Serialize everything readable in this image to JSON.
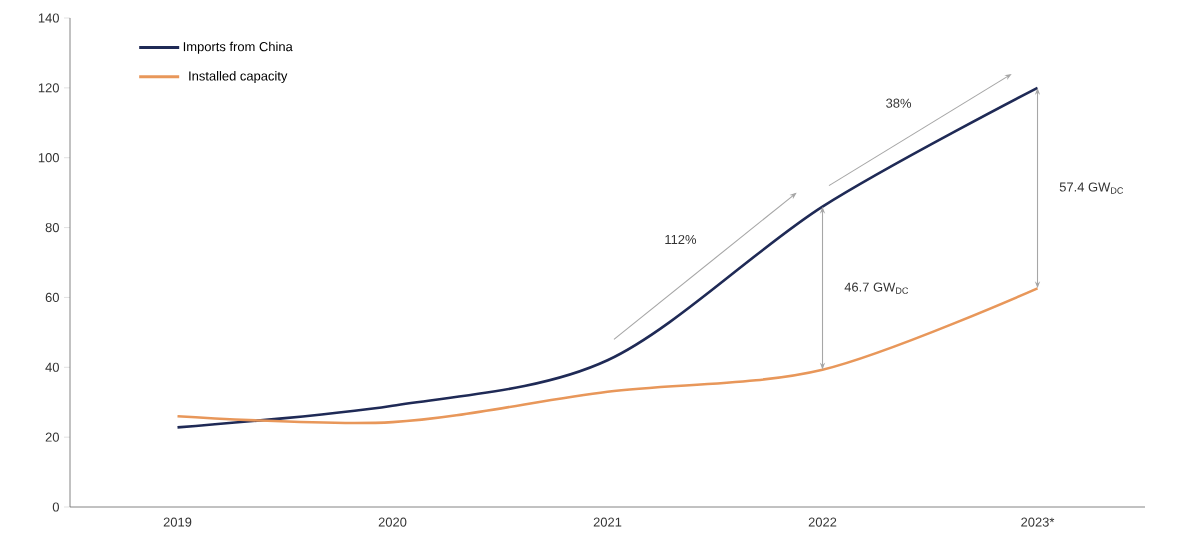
{
  "chart_data": {
    "type": "line",
    "categories": [
      "2019",
      "2020",
      "2021",
      "2022",
      "2023*"
    ],
    "series": [
      {
        "name": "Imports from China",
        "color": "#1f2a56",
        "values": [
          22.8,
          29,
          42,
          86,
          120
        ]
      },
      {
        "name": "Installed capacity",
        "color": "#e8975a",
        "values": [
          26,
          24.3,
          33,
          39.3,
          62.6
        ]
      }
    ],
    "ylim": [
      0,
      140
    ],
    "yticks": [
      0,
      20,
      40,
      60,
      80,
      100,
      120,
      140
    ],
    "grid": false,
    "legend": "top left",
    "marker": "none",
    "line_style": "solid",
    "annotations": [
      "112%",
      "38%",
      "46.7 GW$_{DC}$",
      "57.4 GW$_{DC}$"
    ]
  }
}
